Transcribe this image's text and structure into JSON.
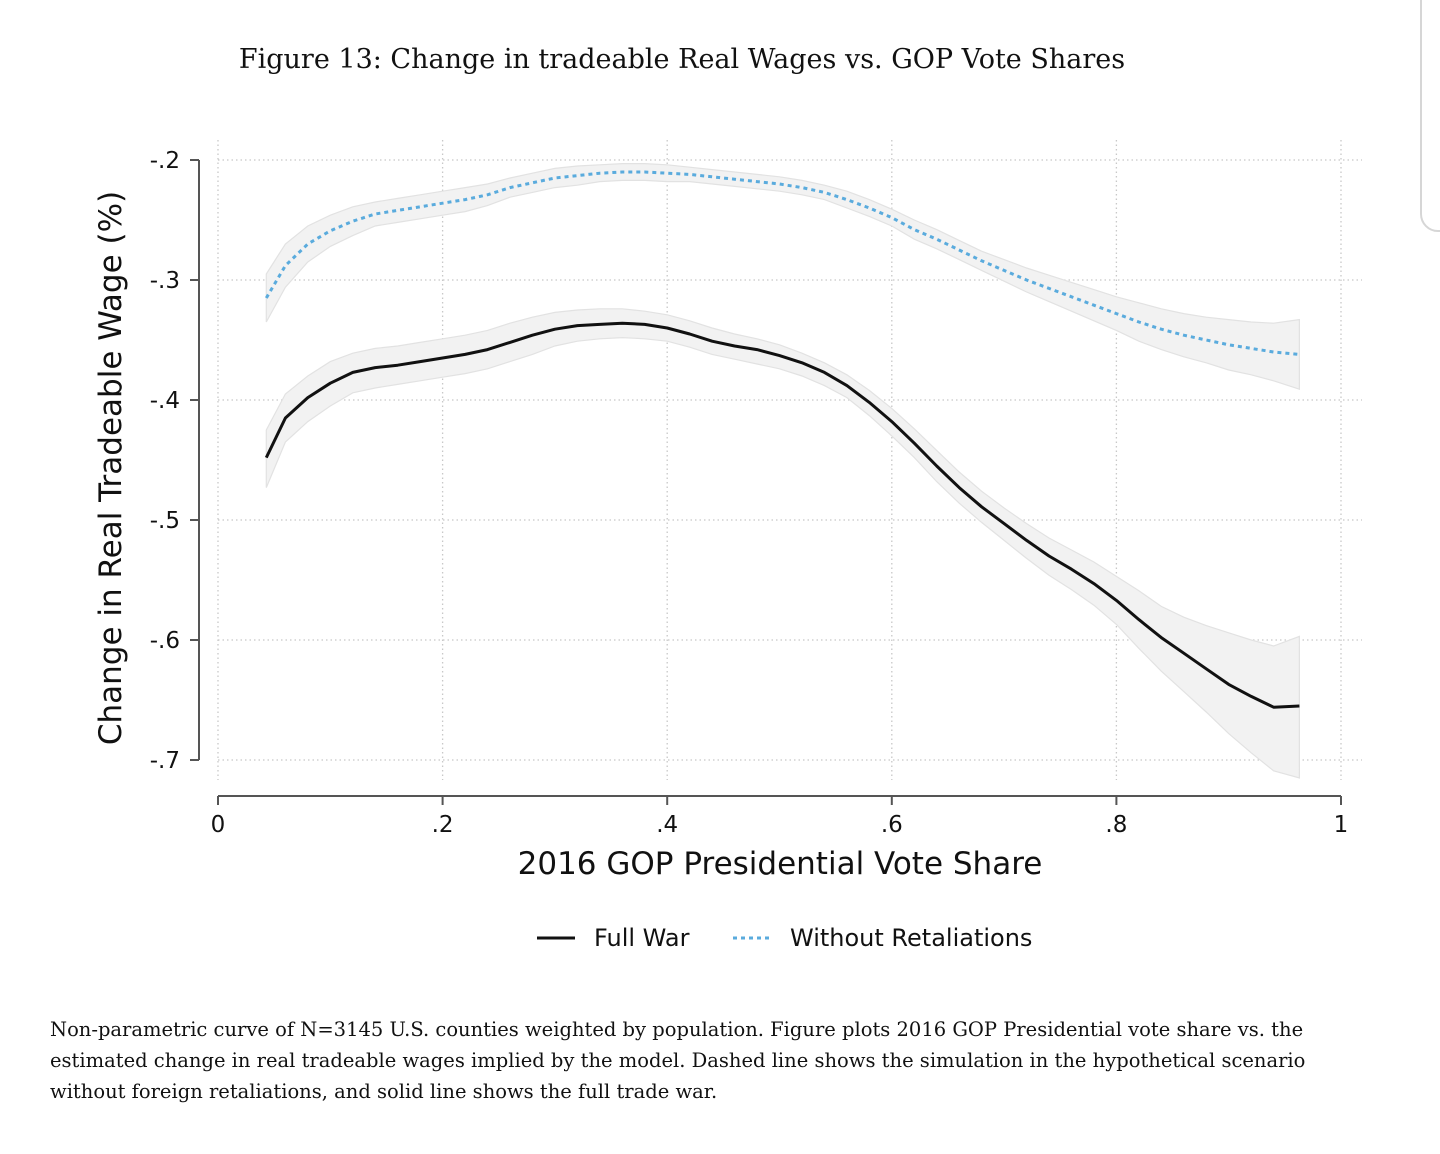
{
  "figure": {
    "title": "Figure 13: Change in tradeable Real Wages vs. GOP Vote Shares",
    "caption": "Non-parametric curve of N=3145 U.S. counties weighted by population. Figure plots 2016 GOP Presidential vote share vs. the estimated change in real tradeable wages implied by the model. Dashed line shows the simulation in the hypothetical scenario without foreign retaliations, and solid line shows the full trade war."
  },
  "chart_data": {
    "type": "line",
    "title": "Figure 13: Change in tradeable Real Wages vs. GOP Vote Shares",
    "xlabel": "2016 GOP Presidential Vote Share",
    "ylabel": "Change in Real Tradeable Wage (%)",
    "xlim": [
      0,
      1
    ],
    "ylim": [
      -0.7,
      -0.2
    ],
    "x_ticks": [
      0,
      0.2,
      0.4,
      0.6,
      0.8,
      1
    ],
    "x_tick_labels": [
      "0",
      ".2",
      ".4",
      ".6",
      ".8",
      "1"
    ],
    "y_ticks": [
      -0.2,
      -0.3,
      -0.4,
      -0.5,
      -0.6,
      -0.7
    ],
    "y_tick_labels": [
      "-.2",
      "-.3",
      "-.4",
      "-.5",
      "-.6",
      "-.7"
    ],
    "grid": true,
    "legend_position": "bottom",
    "confidence_band": true,
    "x": [
      0.043,
      0.06,
      0.08,
      0.1,
      0.12,
      0.14,
      0.16,
      0.18,
      0.2,
      0.22,
      0.24,
      0.26,
      0.28,
      0.3,
      0.32,
      0.34,
      0.36,
      0.38,
      0.4,
      0.42,
      0.44,
      0.46,
      0.48,
      0.5,
      0.52,
      0.54,
      0.56,
      0.58,
      0.6,
      0.62,
      0.64,
      0.66,
      0.68,
      0.7,
      0.72,
      0.74,
      0.76,
      0.78,
      0.8,
      0.82,
      0.84,
      0.86,
      0.88,
      0.9,
      0.92,
      0.94,
      0.963
    ],
    "series": [
      {
        "name": "Full War",
        "color": "#111111",
        "style": "solid",
        "values": [
          -0.448,
          -0.415,
          -0.398,
          -0.386,
          -0.377,
          -0.373,
          -0.371,
          -0.368,
          -0.365,
          -0.362,
          -0.358,
          -0.352,
          -0.346,
          -0.341,
          -0.338,
          -0.337,
          -0.336,
          -0.337,
          -0.34,
          -0.345,
          -0.351,
          -0.355,
          -0.358,
          -0.363,
          -0.369,
          -0.377,
          -0.388,
          -0.402,
          -0.418,
          -0.436,
          -0.455,
          -0.473,
          -0.489,
          -0.503,
          -0.517,
          -0.53,
          -0.541,
          -0.553,
          -0.567,
          -0.583,
          -0.598,
          -0.611,
          -0.624,
          -0.637,
          -0.647,
          -0.656,
          -0.655
        ],
        "band_upper": [
          -0.425,
          -0.395,
          -0.38,
          -0.368,
          -0.361,
          -0.357,
          -0.355,
          -0.352,
          -0.349,
          -0.346,
          -0.342,
          -0.336,
          -0.331,
          -0.327,
          -0.325,
          -0.324,
          -0.324,
          -0.326,
          -0.329,
          -0.334,
          -0.34,
          -0.345,
          -0.349,
          -0.354,
          -0.361,
          -0.369,
          -0.379,
          -0.392,
          -0.407,
          -0.424,
          -0.442,
          -0.46,
          -0.476,
          -0.49,
          -0.503,
          -0.515,
          -0.525,
          -0.535,
          -0.547,
          -0.559,
          -0.572,
          -0.581,
          -0.588,
          -0.594,
          -0.6,
          -0.605,
          -0.597
        ],
        "band_lower": [
          -0.473,
          -0.435,
          -0.418,
          -0.405,
          -0.394,
          -0.39,
          -0.387,
          -0.384,
          -0.381,
          -0.378,
          -0.374,
          -0.368,
          -0.362,
          -0.355,
          -0.351,
          -0.349,
          -0.348,
          -0.349,
          -0.351,
          -0.356,
          -0.362,
          -0.366,
          -0.37,
          -0.374,
          -0.38,
          -0.388,
          -0.398,
          -0.413,
          -0.43,
          -0.448,
          -0.468,
          -0.486,
          -0.502,
          -0.517,
          -0.532,
          -0.546,
          -0.558,
          -0.571,
          -0.587,
          -0.607,
          -0.626,
          -0.643,
          -0.66,
          -0.678,
          -0.694,
          -0.709,
          -0.715
        ]
      },
      {
        "name": "Without Retaliations",
        "color": "#5aabdd",
        "style": "dotted",
        "values": [
          -0.315,
          -0.288,
          -0.27,
          -0.259,
          -0.251,
          -0.245,
          -0.242,
          -0.239,
          -0.236,
          -0.233,
          -0.229,
          -0.223,
          -0.219,
          -0.215,
          -0.213,
          -0.211,
          -0.21,
          -0.21,
          -0.211,
          -0.212,
          -0.214,
          -0.216,
          -0.218,
          -0.22,
          -0.223,
          -0.227,
          -0.233,
          -0.24,
          -0.248,
          -0.258,
          -0.266,
          -0.275,
          -0.284,
          -0.292,
          -0.3,
          -0.307,
          -0.314,
          -0.321,
          -0.328,
          -0.335,
          -0.341,
          -0.346,
          -0.35,
          -0.354,
          -0.357,
          -0.36,
          -0.362
        ],
        "band_upper": [
          -0.295,
          -0.27,
          -0.255,
          -0.246,
          -0.239,
          -0.235,
          -0.232,
          -0.229,
          -0.226,
          -0.223,
          -0.22,
          -0.215,
          -0.211,
          -0.207,
          -0.205,
          -0.204,
          -0.203,
          -0.203,
          -0.204,
          -0.206,
          -0.208,
          -0.21,
          -0.212,
          -0.214,
          -0.217,
          -0.221,
          -0.226,
          -0.233,
          -0.241,
          -0.25,
          -0.258,
          -0.267,
          -0.276,
          -0.283,
          -0.29,
          -0.296,
          -0.302,
          -0.308,
          -0.314,
          -0.319,
          -0.324,
          -0.328,
          -0.331,
          -0.333,
          -0.335,
          -0.336,
          -0.333
        ],
        "band_lower": [
          -0.335,
          -0.306,
          -0.285,
          -0.272,
          -0.263,
          -0.255,
          -0.252,
          -0.249,
          -0.246,
          -0.243,
          -0.238,
          -0.231,
          -0.227,
          -0.223,
          -0.221,
          -0.218,
          -0.217,
          -0.217,
          -0.218,
          -0.218,
          -0.22,
          -0.222,
          -0.224,
          -0.226,
          -0.229,
          -0.233,
          -0.24,
          -0.247,
          -0.255,
          -0.266,
          -0.274,
          -0.283,
          -0.292,
          -0.301,
          -0.31,
          -0.318,
          -0.326,
          -0.334,
          -0.342,
          -0.351,
          -0.358,
          -0.364,
          -0.369,
          -0.375,
          -0.379,
          -0.384,
          -0.391
        ]
      }
    ]
  }
}
